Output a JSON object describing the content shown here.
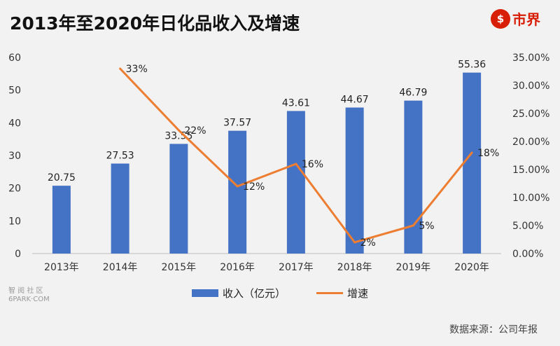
{
  "title": "2013年至2020年日化品收入及增速",
  "brand": {
    "name": "市界",
    "icon": "shi-logo-icon"
  },
  "source": "数据来源：公司年报",
  "watermark": {
    "line1": "智 阅 社 区",
    "line2": "6PARK·COM"
  },
  "colors": {
    "bar": "#4472c4",
    "line": "#ed7d31"
  },
  "chart_data": {
    "type": "bar+line",
    "categories": [
      "2013年",
      "2014年",
      "2015年",
      "2016年",
      "2017年",
      "2018年",
      "2019年",
      "2020年"
    ],
    "series": [
      {
        "name": "收入（亿元）",
        "type": "bar",
        "axis": "left",
        "values": [
          20.75,
          27.53,
          33.55,
          37.57,
          43.61,
          44.67,
          46.79,
          55.36
        ],
        "labels": [
          "20.75",
          "27.53",
          "33.55",
          "37.57",
          "43.61",
          "44.67",
          "46.79",
          "55.36"
        ]
      },
      {
        "name": "增速",
        "type": "line",
        "axis": "right",
        "values": [
          null,
          0.33,
          0.22,
          0.12,
          0.16,
          0.02,
          0.05,
          0.18
        ],
        "labels": [
          null,
          "33%",
          "22%",
          "12%",
          "16%",
          "2%",
          "5%",
          "18%"
        ]
      }
    ],
    "left_axis": {
      "ylim": [
        0,
        60
      ],
      "ticks": [
        "0",
        "10",
        "20",
        "30",
        "40",
        "50",
        "60"
      ]
    },
    "right_axis": {
      "ylim": [
        0,
        0.35
      ],
      "ticks": [
        "0.00%",
        "5.00%",
        "10.00%",
        "15.00%",
        "20.00%",
        "25.00%",
        "30.00%",
        "35.00%"
      ]
    },
    "grid": false,
    "legend_position": "bottom"
  }
}
